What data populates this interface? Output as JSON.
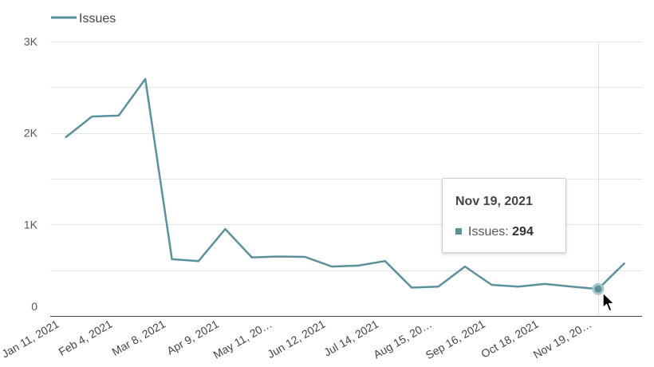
{
  "colors": {
    "series": "#5b919b",
    "grid": "#e6e6e6",
    "text": "#444444"
  },
  "legend": {
    "position": "top-left"
  },
  "chart_data": {
    "type": "line",
    "title": "",
    "xlabel": "",
    "ylabel": "",
    "ylim": [
      0,
      3000
    ],
    "yticks": [
      0,
      1000,
      2000,
      3000
    ],
    "ytick_labels": [
      "0",
      "1K",
      "2K",
      "3K"
    ],
    "grid": true,
    "xtick_labels": [
      "Jan 11, 2021",
      "Feb 4, 2021",
      "Mar 8, 2021",
      "Apr 9, 2021",
      "May 11, 20…",
      "Jun 12, 2021",
      "Jul 14, 2021",
      "Aug 15, 20…",
      "Sep 16, 2021",
      "Oct 18, 2021",
      "Nov 19, 20…"
    ],
    "series": [
      {
        "name": "Issues",
        "values": [
          1950,
          2180,
          2190,
          2590,
          620,
          600,
          950,
          640,
          650,
          645,
          540,
          550,
          600,
          310,
          320,
          540,
          340,
          320,
          350,
          320,
          294,
          580
        ]
      }
    ],
    "tooltip": {
      "title": "Nov 19, 2021",
      "series": "Issues",
      "value": "294",
      "point_index": 20
    }
  }
}
